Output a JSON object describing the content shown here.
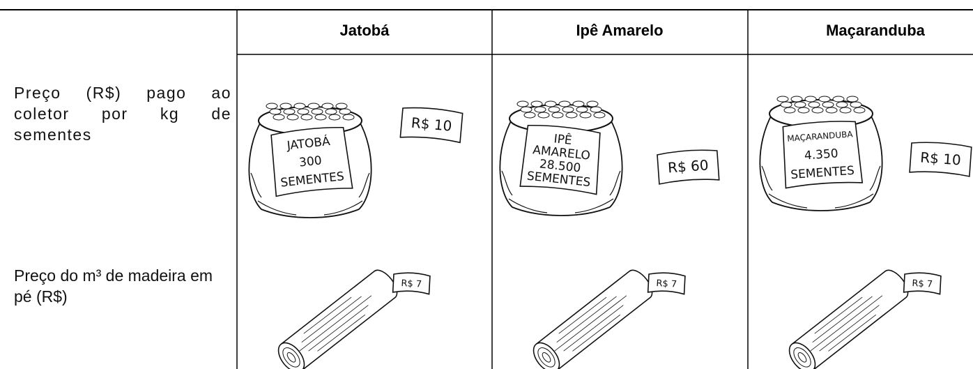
{
  "table": {
    "headers": [
      "Jatobá",
      "Ipê Amarelo",
      "Maçaranduba"
    ],
    "rows": [
      {
        "label": "Preço (R$) pago ao coletor por kg de sementes",
        "cells": [
          {
            "bag_label": [
              "JATOBÁ",
              "300",
              "SEMENTES"
            ],
            "price_tag": "R$ 10"
          },
          {
            "bag_label": [
              "IPÊ",
              "AMARELO",
              "28.500",
              "SEMENTES"
            ],
            "price_tag": "R$ 60"
          },
          {
            "bag_label": [
              "MAÇARANDUBA",
              "4.350",
              "SEMENTES"
            ],
            "price_tag": "R$ 10"
          }
        ]
      },
      {
        "label": "Preço do m³ de madeira em pé (R$)",
        "cells": [
          {
            "price_tag": "R$ 7"
          },
          {
            "price_tag": "R$ 7"
          },
          {
            "price_tag": "R$ 7"
          }
        ]
      }
    ]
  }
}
